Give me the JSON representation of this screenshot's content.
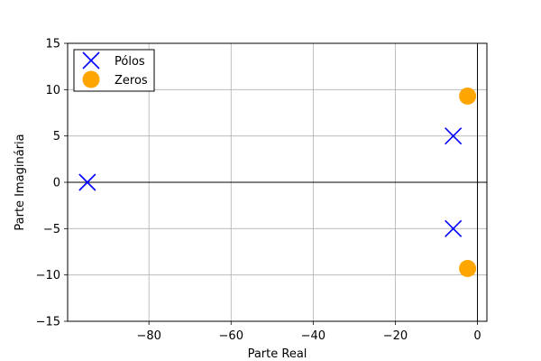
{
  "chart_data": {
    "type": "scatter",
    "title": "",
    "xlabel": "Parte Real",
    "ylabel": "Parte Imaginária",
    "xlim": [
      -99.8,
      2.3
    ],
    "ylim": [
      -15,
      15
    ],
    "xticks": [
      -80,
      -60,
      -40,
      -20,
      0
    ],
    "yticks": [
      -15,
      -10,
      -5,
      0,
      5,
      10,
      15
    ],
    "grid": true,
    "legend_position": "top-left",
    "series": [
      {
        "name": "Pólos",
        "marker": "x",
        "color": "#0000ff",
        "points": [
          {
            "x": -95,
            "y": 0
          },
          {
            "x": -5.9,
            "y": 5
          },
          {
            "x": -5.9,
            "y": -5
          }
        ]
      },
      {
        "name": "Zeros",
        "marker": "circle",
        "color": "#ffa500",
        "points": [
          {
            "x": -2.4,
            "y": 9.3
          },
          {
            "x": -2.4,
            "y": -9.3
          }
        ]
      }
    ]
  }
}
